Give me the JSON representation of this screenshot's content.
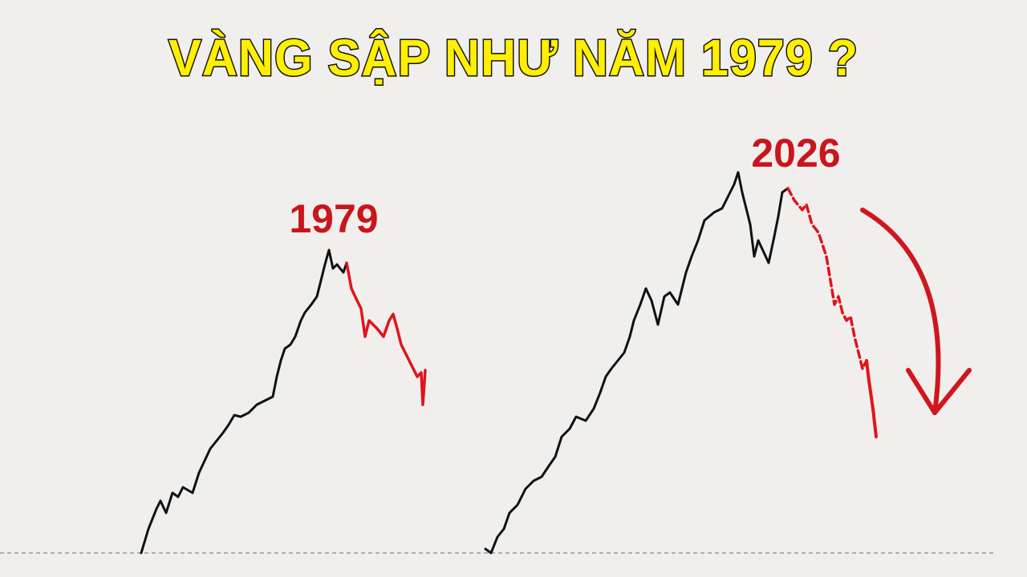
{
  "title": "VÀNG SẬP NHƯ NĂM 1979 ?",
  "labels": [
    "1979",
    "2026"
  ]
}
